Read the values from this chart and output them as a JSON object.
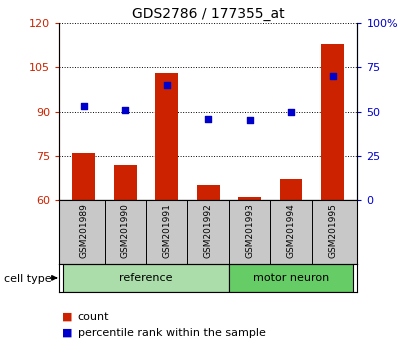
{
  "title": "GDS2786 / 177355_at",
  "categories": [
    "GSM201989",
    "GSM201990",
    "GSM201991",
    "GSM201992",
    "GSM201993",
    "GSM201994",
    "GSM201995"
  ],
  "bar_values": [
    76,
    72,
    103,
    65,
    61,
    67,
    113
  ],
  "scatter_values": [
    53,
    51,
    65,
    46,
    45,
    50,
    70
  ],
  "bar_color": "#cc2200",
  "scatter_color": "#0000cc",
  "ylim_left": [
    60,
    120
  ],
  "ylim_right": [
    0,
    100
  ],
  "yticks_left": [
    60,
    75,
    90,
    105,
    120
  ],
  "yticks_right": [
    0,
    25,
    50,
    75,
    100
  ],
  "ytick_labels_right": [
    "0",
    "25",
    "50",
    "75",
    "100%"
  ],
  "groups": [
    {
      "label": "reference",
      "indices": [
        0,
        1,
        2,
        3
      ],
      "color": "#aaddaa"
    },
    {
      "label": "motor neuron",
      "indices": [
        4,
        5,
        6
      ],
      "color": "#66cc66"
    }
  ],
  "group_label": "cell type",
  "legend_items": [
    "count",
    "percentile rank within the sample"
  ],
  "legend_colors": [
    "#cc2200",
    "#0000cc"
  ],
  "background_color": "#ffffff",
  "tick_area_color": "#c8c8c8",
  "left_tick_color": "#cc2200",
  "right_tick_color": "#0000cc",
  "bar_bottom": 60
}
